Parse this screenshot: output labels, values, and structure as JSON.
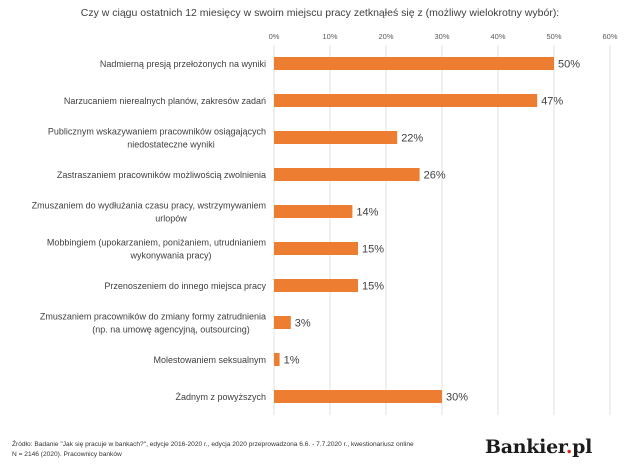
{
  "chart_data": {
    "type": "bar",
    "orientation": "horizontal",
    "title": "Czy w ciągu ostatnich 12 miesięcy w swoim miejscu pracy zetknąłeś się z (możliwy wielokrotny wybór):",
    "categories": [
      [
        "Nadmierną presją przełożonych na wyniki"
      ],
      [
        "Narzucaniem nierealnych planów, zakresów zadań"
      ],
      [
        "Publicznym wskazywaniem pracowników osiągających",
        "niedostateczne wyniki"
      ],
      [
        "Zastraszaniem pracowników możliwością zwolnienia"
      ],
      [
        "Zmuszaniem do wydłużania czasu pracy, wstrzymywaniem",
        "urlopów"
      ],
      [
        "Mobbingiem (upokarzaniem, poniżaniem, utrudnianiem",
        "wykonywania pracy)"
      ],
      [
        "Przenoszeniem do innego miejsca pracy"
      ],
      [
        "Zmuszaniem pracowników do zmiany formy zatrudnienia",
        "(np. na umowę agencyjną, outsourcing)"
      ],
      [
        "Molestowaniem seksualnym"
      ],
      [
        "Żadnym z powyższych"
      ]
    ],
    "values": [
      50,
      47,
      22,
      26,
      14,
      15,
      15,
      3,
      1,
      30
    ],
    "value_labels": [
      "50%",
      "47%",
      "22%",
      "26%",
      "14%",
      "15%",
      "15%",
      "3%",
      "1%",
      "30%"
    ],
    "xlim": [
      0,
      60
    ],
    "xticks": [
      0,
      10,
      20,
      30,
      40,
      50,
      60
    ],
    "xtick_labels": [
      "0%",
      "10%",
      "20%",
      "30%",
      "40%",
      "50%",
      "60%"
    ],
    "xaxis_position": "top",
    "grid": true,
    "legend": "none",
    "bar_color": "#ED7D31",
    "grid_color": "#D9D9D9"
  },
  "source": {
    "line1": "Źródło: Badanie \"Jak się pracuje w bankach?\", edycje 2016-2020 r., edycja 2020 przeprowadzona 6.6. - 7.7.2020 r., kwestionariusz online",
    "line2": "N = 2146  (2020). Pracownicy banków"
  },
  "brand": {
    "name": "Bankier",
    "dot": ".",
    "tld": "pl"
  }
}
